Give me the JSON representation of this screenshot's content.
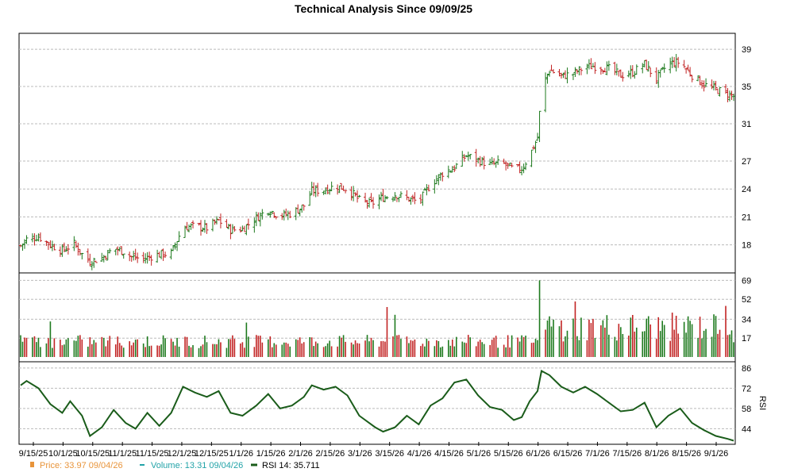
{
  "title": "Technical Analysis Since 09/09/25",
  "colors": {
    "up": "#1e7a1e",
    "down": "#c22424",
    "price_legend": "#e8943a",
    "volume_legend": "#22a3a8",
    "rsi_line": "#1a5c1a",
    "grid": "#bbbbbb",
    "axis": "#000000"
  },
  "legend": {
    "price": "Price: 33.97  09/04/26",
    "volume": "Volume: 13.31  09/04/26",
    "rsi": "RSI 14: 35.711"
  },
  "chart_data": [
    {
      "type": "ohlc",
      "panel": "price",
      "title": "Technical Analysis Since 09/09/25",
      "x_ticks": [
        "9/15/25",
        "10/1/25",
        "10/15/25",
        "11/1/25",
        "11/15/25",
        "12/1/25",
        "12/15/25",
        "1/1/26",
        "1/15/26",
        "2/1/26",
        "2/15/26",
        "3/1/26",
        "3/15/26",
        "4/1/26",
        "4/15/26",
        "5/1/26",
        "5/15/26",
        "6/1/26",
        "6/15/26",
        "7/1/26",
        "7/15/26",
        "8/1/26",
        "8/15/26",
        "9/1/26"
      ],
      "y_ticks": [
        18,
        21,
        24,
        27,
        31,
        35,
        39
      ],
      "ylim": [
        15.5,
        40.2
      ],
      "grid": true,
      "close_path": [
        [
          "2025-09-09",
          17.9
        ],
        [
          "2025-09-12",
          18.6
        ],
        [
          "2025-09-18",
          18.9
        ],
        [
          "2025-09-24",
          18.0
        ],
        [
          "2025-09-30",
          17.4
        ],
        [
          "2025-10-06",
          18.1
        ],
        [
          "2025-10-10",
          17.0
        ],
        [
          "2025-10-14",
          16.2
        ],
        [
          "2025-10-20",
          16.6
        ],
        [
          "2025-10-26",
          17.6
        ],
        [
          "2025-10-31",
          17.3
        ],
        [
          "2025-11-04",
          16.7
        ],
        [
          "2025-11-10",
          16.5
        ],
        [
          "2025-11-16",
          16.9
        ],
        [
          "2025-11-24",
          17.1
        ],
        [
          "2025-11-30",
          19.9
        ],
        [
          "2025-12-06",
          20.0
        ],
        [
          "2025-12-12",
          19.8
        ],
        [
          "2025-12-18",
          20.6
        ],
        [
          "2025-12-24",
          19.6
        ],
        [
          "2025-12-30",
          19.7
        ],
        [
          "2026-01-06",
          20.9
        ],
        [
          "2026-01-12",
          21.8
        ],
        [
          "2026-01-18",
          21.1
        ],
        [
          "2026-01-24",
          21.4
        ],
        [
          "2026-01-30",
          22.2
        ],
        [
          "2026-02-03",
          23.8
        ],
        [
          "2026-02-09",
          23.9
        ],
        [
          "2026-02-15",
          24.3
        ],
        [
          "2026-02-21",
          24.0
        ],
        [
          "2026-02-27",
          22.8
        ],
        [
          "2026-03-05",
          22.4
        ],
        [
          "2026-03-11",
          23.1
        ],
        [
          "2026-03-17",
          23.4
        ],
        [
          "2026-03-23",
          23.0
        ],
        [
          "2026-03-29",
          22.6
        ],
        [
          "2026-04-04",
          24.5
        ],
        [
          "2026-04-10",
          25.7
        ],
        [
          "2026-04-16",
          26.3
        ],
        [
          "2026-04-22",
          27.6
        ],
        [
          "2026-04-28",
          27.1
        ],
        [
          "2026-05-04",
          26.6
        ],
        [
          "2026-05-10",
          26.8
        ],
        [
          "2026-05-16",
          26.1
        ],
        [
          "2026-05-20",
          26.2
        ],
        [
          "2026-05-24",
          27.6
        ],
        [
          "2026-05-28",
          29.5
        ],
        [
          "2026-05-30",
          34.8
        ],
        [
          "2026-06-03",
          36.8
        ],
        [
          "2026-06-09",
          36.1
        ],
        [
          "2026-06-15",
          36.4
        ],
        [
          "2026-06-21",
          37.1
        ],
        [
          "2026-06-27",
          37.2
        ],
        [
          "2026-07-03",
          36.9
        ],
        [
          "2026-07-09",
          36.2
        ],
        [
          "2026-07-15",
          36.5
        ],
        [
          "2026-07-21",
          37.4
        ],
        [
          "2026-07-27",
          35.8
        ],
        [
          "2026-08-02",
          37.5
        ],
        [
          "2026-08-08",
          37.6
        ],
        [
          "2026-08-14",
          36.2
        ],
        [
          "2026-08-20",
          35.2
        ],
        [
          "2026-08-26",
          34.7
        ],
        [
          "2026-09-01",
          34.2
        ],
        [
          "2026-09-04",
          33.97
        ]
      ]
    },
    {
      "type": "bar",
      "panel": "volume",
      "series_name": "Volume",
      "y_ticks": [
        17,
        34,
        52,
        69
      ],
      "ylim": [
        0,
        70
      ],
      "grid": true,
      "latest": 13.31,
      "spikes": [
        [
          "2025-09-24",
          32
        ],
        [
          "2026-01-01",
          31
        ],
        [
          "2026-03-13",
          45
        ],
        [
          "2026-03-17",
          38
        ],
        [
          "2026-05-29",
          69
        ],
        [
          "2026-05-30",
          45
        ],
        [
          "2026-06-16",
          50
        ],
        [
          "2026-08-31",
          46
        ],
        [
          "2026-08-26",
          37
        ]
      ]
    },
    {
      "type": "line",
      "panel": "rsi",
      "series_name": "RSI 14",
      "y_label": "RSI",
      "y_ticks": [
        44,
        58,
        72,
        86
      ],
      "ylim": [
        36,
        87
      ],
      "grid": true,
      "latest": 35.711,
      "path": [
        [
          "2025-09-09",
          74
        ],
        [
          "2025-09-12",
          77
        ],
        [
          "2025-09-18",
          72
        ],
        [
          "2025-09-24",
          61
        ],
        [
          "2025-09-30",
          55
        ],
        [
          "2025-10-04",
          63
        ],
        [
          "2025-10-10",
          53
        ],
        [
          "2025-10-14",
          39
        ],
        [
          "2025-10-20",
          45
        ],
        [
          "2025-10-26",
          57
        ],
        [
          "2025-11-01",
          48
        ],
        [
          "2025-11-06",
          44
        ],
        [
          "2025-11-12",
          55
        ],
        [
          "2025-11-18",
          46
        ],
        [
          "2025-11-24",
          55
        ],
        [
          "2025-11-30",
          73
        ],
        [
          "2025-12-06",
          69
        ],
        [
          "2025-12-12",
          66
        ],
        [
          "2025-12-18",
          70
        ],
        [
          "2025-12-24",
          55
        ],
        [
          "2025-12-30",
          53
        ],
        [
          "2026-01-06",
          60
        ],
        [
          "2026-01-12",
          68
        ],
        [
          "2026-01-18",
          58
        ],
        [
          "2026-01-24",
          60
        ],
        [
          "2026-01-30",
          66
        ],
        [
          "2026-02-03",
          74
        ],
        [
          "2026-02-09",
          71
        ],
        [
          "2026-02-15",
          73
        ],
        [
          "2026-02-21",
          67
        ],
        [
          "2026-02-27",
          53
        ],
        [
          "2026-03-07",
          45
        ],
        [
          "2026-03-11",
          42
        ],
        [
          "2026-03-17",
          45
        ],
        [
          "2026-03-23",
          53
        ],
        [
          "2026-03-29",
          47
        ],
        [
          "2026-04-04",
          60
        ],
        [
          "2026-04-10",
          65
        ],
        [
          "2026-04-16",
          76
        ],
        [
          "2026-04-22",
          78
        ],
        [
          "2026-04-28",
          67
        ],
        [
          "2026-05-04",
          59
        ],
        [
          "2026-05-10",
          57
        ],
        [
          "2026-05-16",
          50
        ],
        [
          "2026-05-20",
          52
        ],
        [
          "2026-05-24",
          63
        ],
        [
          "2026-05-28",
          70
        ],
        [
          "2026-05-30",
          84
        ],
        [
          "2026-06-03",
          81
        ],
        [
          "2026-06-09",
          73
        ],
        [
          "2026-06-15",
          69
        ],
        [
          "2026-06-21",
          73
        ],
        [
          "2026-06-27",
          68
        ],
        [
          "2026-07-03",
          62
        ],
        [
          "2026-07-09",
          56
        ],
        [
          "2026-07-15",
          57
        ],
        [
          "2026-07-21",
          62
        ],
        [
          "2026-07-27",
          45
        ],
        [
          "2026-08-02",
          53
        ],
        [
          "2026-08-08",
          58
        ],
        [
          "2026-08-14",
          48
        ],
        [
          "2026-08-20",
          43
        ],
        [
          "2026-08-26",
          39
        ],
        [
          "2026-09-01",
          37
        ],
        [
          "2026-09-04",
          35.7
        ]
      ]
    }
  ]
}
